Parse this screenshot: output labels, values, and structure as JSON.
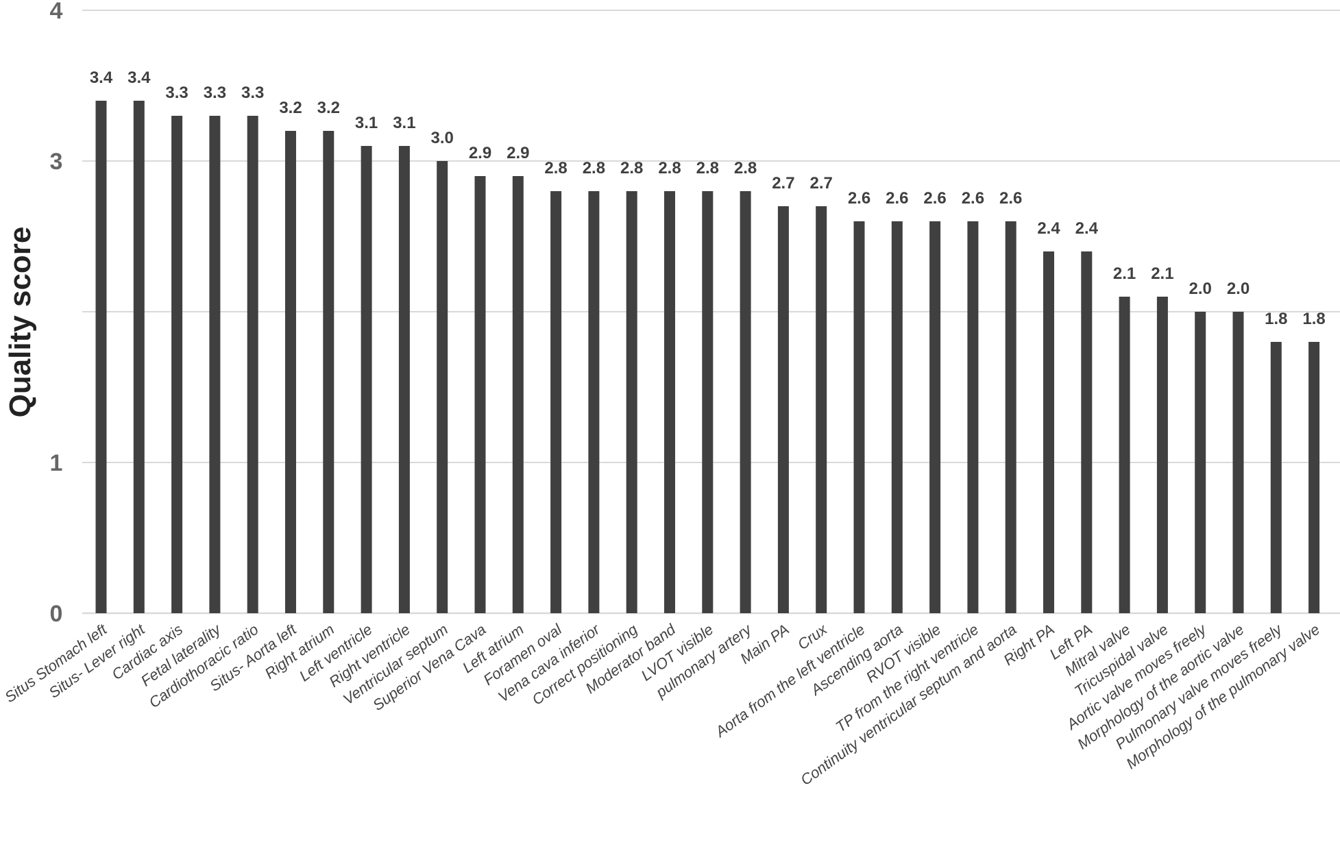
{
  "chart_data": {
    "type": "bar",
    "ylabel": "Quality score",
    "ylim": [
      0,
      4
    ],
    "yticks": [
      0,
      1,
      3,
      4
    ],
    "grid": true,
    "colors": {
      "bar": "#404040",
      "grid": "#d9d9d9",
      "tick_text": "#666666",
      "label_text": "#404040"
    },
    "categories": [
      "Situs Stomach left",
      "Situs- Lever right",
      "Cardiac axis",
      "Fetal laterality",
      "Cardiothoracic ratio",
      "Situs- Aorta left",
      "Right atrium",
      "Left ventricle",
      "Right ventricle",
      "Ventricular septum",
      "Superior Vena Cava",
      "Left atrium",
      "Foramen oval",
      "Vena cava inferior",
      "Correct positioning",
      "Moderator band",
      "LVOT visible",
      "pulmonary artery",
      "Main PA",
      "Crux",
      "Aorta from the left ventricle",
      "Ascending aorta",
      "RVOT visible",
      "TP from the right ventricle",
      "Continuity ventricular septum and aorta",
      "Right PA",
      "Left PA",
      "Mitral valve",
      "Tricuspidal valve",
      "Aortic valve moves freely",
      "Morphology of the aortic valve",
      "Pulmonary valve moves freely",
      "Morphology of the pulmonary valve"
    ],
    "values": [
      3.4,
      3.4,
      3.3,
      3.3,
      3.3,
      3.2,
      3.2,
      3.1,
      3.1,
      3.0,
      2.9,
      2.9,
      2.8,
      2.8,
      2.8,
      2.8,
      2.8,
      2.8,
      2.7,
      2.7,
      2.6,
      2.6,
      2.6,
      2.6,
      2.6,
      2.4,
      2.4,
      2.1,
      2.1,
      2.0,
      2.0,
      1.8,
      1.8
    ],
    "value_labels": [
      "3.4",
      "3.4",
      "3.3",
      "3.3",
      "3.3",
      "3.2",
      "3.2",
      "3.1",
      "3.1",
      "3.0",
      "2.9",
      "2.9",
      "2.8",
      "2.8",
      "2.8",
      "2.8",
      "2.8",
      "2.8",
      "2.7",
      "2.7",
      "2.6",
      "2.6",
      "2.6",
      "2.6",
      "2.6",
      "2.4",
      "2.4",
      "2.1",
      "2.1",
      "2.0",
      "2.0",
      "1.8",
      "1.8"
    ]
  }
}
